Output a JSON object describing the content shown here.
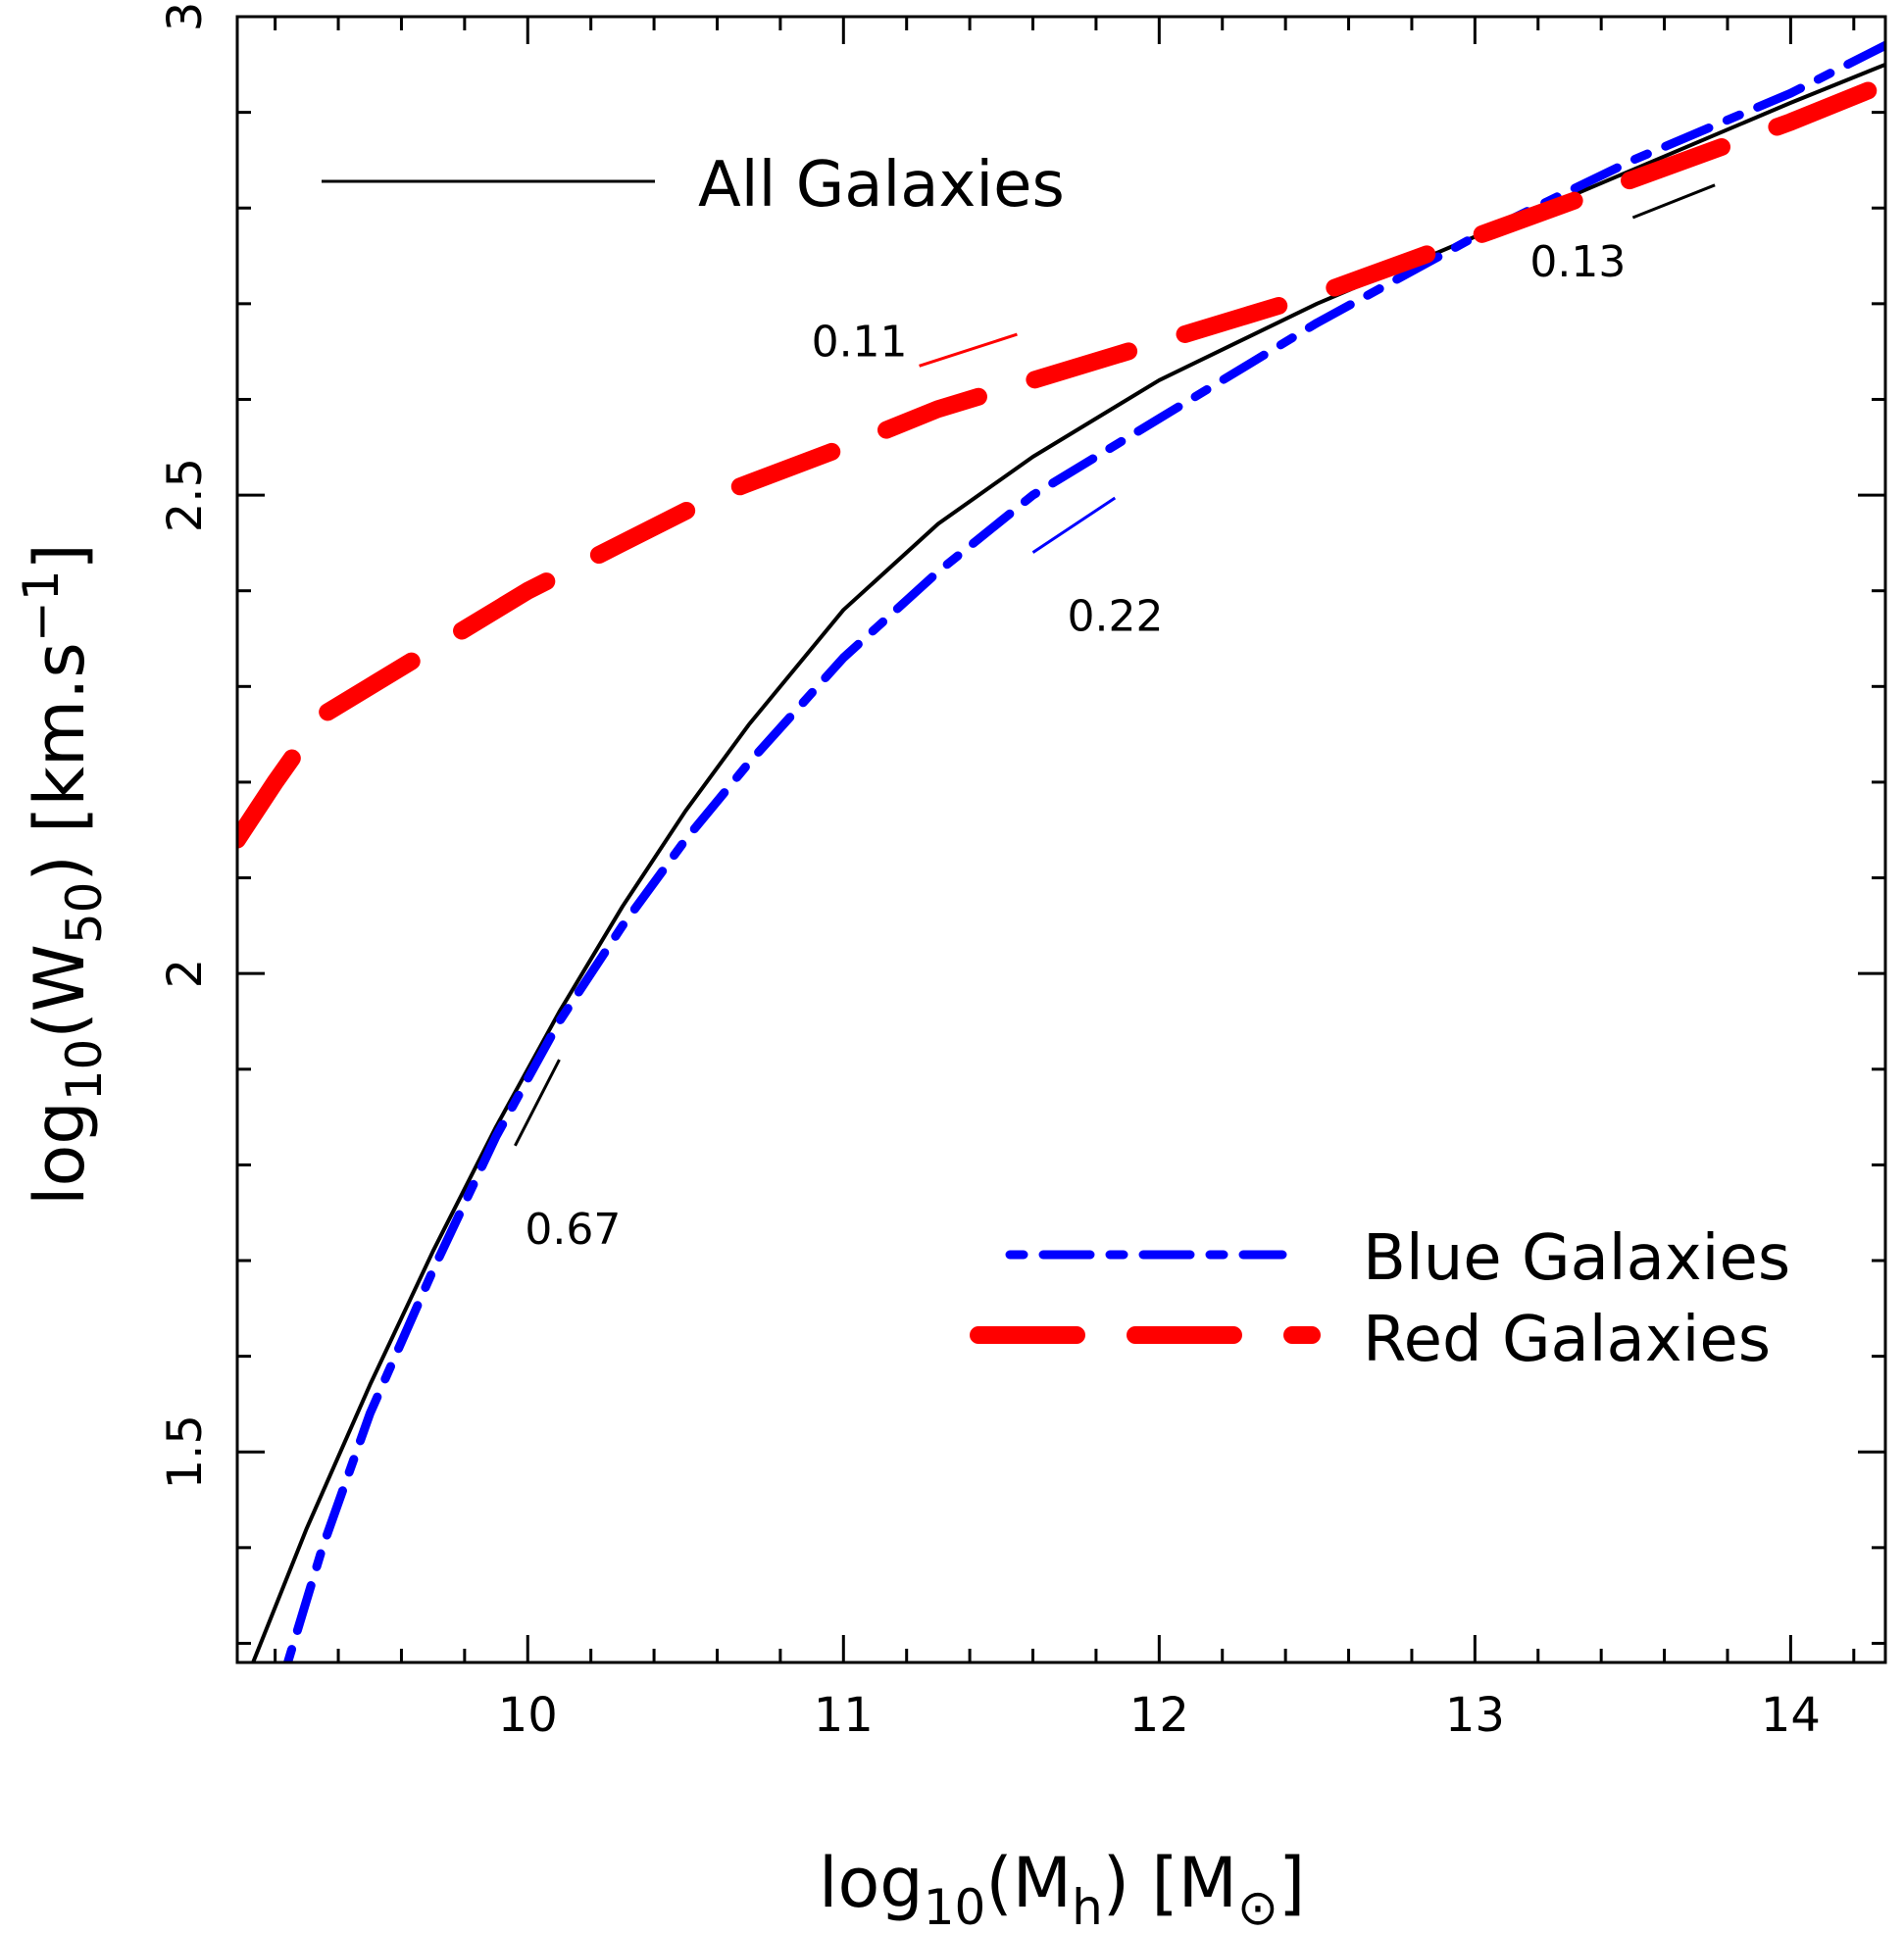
{
  "chart_data": {
    "type": "line",
    "title": "",
    "xlabel": {
      "base": "log",
      "sub": "10",
      "mid": "(M",
      "sub2": "h",
      "tail": ")  [M",
      "symbol": "⊙",
      "close": "]"
    },
    "ylabel": {
      "base": "log",
      "sub": "10",
      "mid": "(W",
      "sub2": "50",
      "tail": ")  [km.s",
      "sup": "−1",
      "close": "]"
    },
    "xlim": [
      9.08,
      14.3
    ],
    "ylim": [
      1.28,
      3.0
    ],
    "xticks": [
      10,
      11,
      12,
      13,
      14
    ],
    "xtick_labels": [
      "10",
      "11",
      "12",
      "13",
      "14"
    ],
    "yticks": [
      1.5,
      2.0,
      2.5,
      3.0
    ],
    "ytick_labels": [
      "1.5",
      "2",
      "2.5",
      "3"
    ],
    "x_minor_step": 0.2,
    "y_minor_step": 0.1,
    "colors": {
      "all": "#000000",
      "blue": "#0000ff",
      "red": "#ff0000"
    },
    "series": [
      {
        "name": "All Galaxies",
        "key": "all",
        "x": [
          9.13,
          9.3,
          9.5,
          9.7,
          9.9,
          10.1,
          10.3,
          10.5,
          10.7,
          11.0,
          11.3,
          11.6,
          12.0,
          12.5,
          13.0,
          13.5,
          14.0,
          14.3
        ],
        "values": [
          1.28,
          1.42,
          1.57,
          1.71,
          1.84,
          1.96,
          2.07,
          2.17,
          2.26,
          2.38,
          2.47,
          2.54,
          2.62,
          2.7,
          2.77,
          2.84,
          2.91,
          2.95
        ]
      },
      {
        "name": "Blue Galaxies",
        "key": "blue",
        "x": [
          9.24,
          9.35,
          9.5,
          9.7,
          9.9,
          10.1,
          10.3,
          10.5,
          10.7,
          11.0,
          11.3,
          11.6,
          12.0,
          12.5,
          13.0,
          13.5,
          14.0,
          14.3
        ],
        "values": [
          1.28,
          1.4,
          1.54,
          1.69,
          1.83,
          1.95,
          2.05,
          2.14,
          2.22,
          2.33,
          2.42,
          2.5,
          2.58,
          2.68,
          2.77,
          2.85,
          2.92,
          2.97
        ]
      },
      {
        "name": "Red Galaxies",
        "key": "red",
        "x": [
          9.08,
          9.2,
          9.35,
          9.5,
          9.7,
          10.0,
          10.3,
          10.6,
          11.0,
          11.3,
          11.6,
          12.0,
          12.5,
          13.0,
          13.5,
          14.0,
          14.3
        ],
        "values": [
          2.14,
          2.2,
          2.27,
          2.3,
          2.34,
          2.4,
          2.45,
          2.5,
          2.55,
          2.59,
          2.62,
          2.66,
          2.71,
          2.77,
          2.83,
          2.89,
          2.93
        ]
      }
    ],
    "legend": {
      "all_label": "All Galaxies",
      "blue_label": "Blue Galaxies",
      "red_label": "Red Galaxies",
      "placement_all": "top-left",
      "placement_colored": "bottom-right"
    },
    "slope_annotations": [
      {
        "label": "0.11",
        "color": "#ff0000",
        "x1": 11.24,
        "y1": 2.635,
        "x2": 11.55,
        "y2": 2.668
      },
      {
        "label": "0.22",
        "color": "#0000ff",
        "x1": 11.6,
        "y1": 2.44,
        "x2": 11.86,
        "y2": 2.497
      },
      {
        "label": "0.13",
        "color": "#000000",
        "x1": 13.5,
        "y1": 2.79,
        "x2": 13.76,
        "y2": 2.824
      },
      {
        "label": "0.67",
        "color": "#000000",
        "x1": 9.96,
        "y1": 1.82,
        "x2": 10.1,
        "y2": 1.91
      }
    ]
  }
}
